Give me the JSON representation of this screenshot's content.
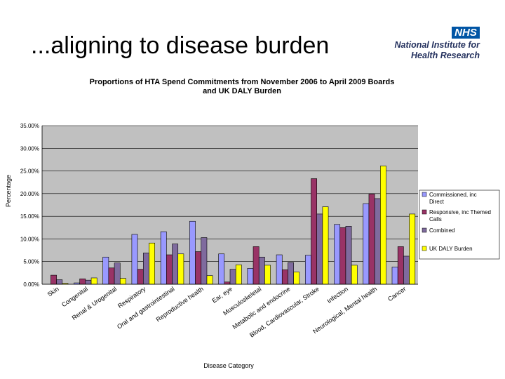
{
  "slide": {
    "title": "...aligning to disease burden",
    "logo": {
      "badge": "NHS",
      "line1": "National Institute for",
      "line2": "Health Research"
    }
  },
  "chart_data": {
    "type": "bar",
    "title_line1": "Proportions of HTA Spend Commitments from November 2006 to April 2009 Boards",
    "title_line2": "and UK DALY Burden",
    "xlabel": "Disease Category",
    "ylabel": "Percentage",
    "ylim": [
      0,
      35
    ],
    "yticks": [
      "0.00%",
      "5.00%",
      "10.00%",
      "15.00%",
      "20.00%",
      "25.00%",
      "30.00%",
      "35.00%"
    ],
    "grid": true,
    "legend_position": "right",
    "categories": [
      "Skin",
      "Congenital",
      "Renal & Urogenital",
      "Respiratory",
      "Oral and gastrointestinal",
      "Reproductive health",
      "Ear, eye",
      "Musculoskeletal",
      "Metabolic and endocrine",
      "Blood, Cardiovascular, Stroke",
      "Infection",
      "Neurological, Mental health",
      "Cancer"
    ],
    "series": [
      {
        "name": "Commissioned, inc Direct",
        "color": "#9999ff",
        "values": [
          0.0,
          0.3,
          6.0,
          11.0,
          11.6,
          13.9,
          6.7,
          3.5,
          6.5,
          6.4,
          13.2,
          17.8,
          3.8
        ]
      },
      {
        "name": "Responsive, inc Themed Calls",
        "color": "#993366",
        "values": [
          2.0,
          1.2,
          3.6,
          3.3,
          6.5,
          7.2,
          0.5,
          8.3,
          3.2,
          23.3,
          12.5,
          19.9,
          8.3
        ]
      },
      {
        "name": "Combined",
        "color": "#7f6b9e",
        "values": [
          1.0,
          0.9,
          4.7,
          6.9,
          8.9,
          10.3,
          3.3,
          6.0,
          4.8,
          15.5,
          12.8,
          18.9,
          6.2
        ]
      },
      {
        "name": "UK DALY Burden",
        "color": "#ffff00",
        "values": [
          0.2,
          1.4,
          1.3,
          9.1,
          6.7,
          1.9,
          4.3,
          4.2,
          2.7,
          17.1,
          4.2,
          26.1,
          15.5
        ]
      }
    ]
  }
}
